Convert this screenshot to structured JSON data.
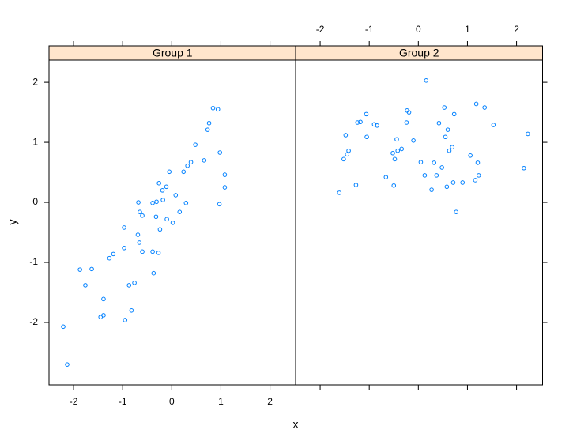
{
  "chart_data": {
    "type": "scatter",
    "xlabel": "x",
    "ylabel": "y",
    "xlim": [
      -2.5,
      2.53
    ],
    "ylim": [
      -3.04,
      2.37
    ],
    "xticks": [
      -2,
      -1,
      0,
      1,
      2
    ],
    "yticks": [
      -2,
      -1,
      0,
      1,
      2
    ],
    "color": "#0080ff",
    "strip_color": "#ffe5cc",
    "panels": [
      {
        "title": "Group 1",
        "x": [
          -2.21,
          -2.13,
          -1.87,
          -1.76,
          -1.63,
          -1.45,
          -1.39,
          -1.39,
          -1.27,
          -1.19,
          -0.97,
          -0.97,
          -0.95,
          -0.87,
          -0.82,
          -0.76,
          -0.69,
          -0.68,
          -0.66,
          -0.65,
          -0.6,
          -0.6,
          -0.39,
          -0.39,
          -0.37,
          -0.32,
          -0.31,
          -0.27,
          -0.26,
          -0.24,
          -0.19,
          -0.18,
          -0.11,
          -0.1,
          -0.05,
          0.02,
          0.08,
          0.16,
          0.24,
          0.29,
          0.32,
          0.39,
          0.48,
          0.66,
          0.73,
          0.76,
          0.84,
          0.94,
          0.97,
          0.98,
          1.08,
          1.08
        ],
        "y": [
          -2.07,
          -2.7,
          -1.12,
          -1.38,
          -1.11,
          -1.91,
          -1.88,
          -1.61,
          -0.93,
          -0.86,
          -0.42,
          -0.76,
          -1.96,
          -1.38,
          -1.8,
          -1.34,
          -0.54,
          0.0,
          -0.67,
          -0.16,
          -0.22,
          -0.82,
          -0.01,
          -0.82,
          -1.18,
          -0.24,
          0.01,
          -0.84,
          0.32,
          -0.45,
          0.2,
          0.04,
          0.26,
          -0.28,
          0.51,
          -0.34,
          0.12,
          -0.16,
          0.51,
          -0.01,
          0.61,
          0.67,
          0.96,
          0.7,
          1.21,
          1.32,
          1.57,
          1.55,
          -0.03,
          0.83,
          0.46,
          0.25
        ]
      },
      {
        "title": "Group 2",
        "x": [
          -1.61,
          -1.52,
          -1.48,
          -1.45,
          -1.42,
          -1.27,
          -1.24,
          -1.18,
          -1.06,
          -1.05,
          -0.9,
          -0.84,
          -0.66,
          -0.52,
          -0.5,
          -0.48,
          -0.44,
          -0.42,
          -0.34,
          -0.24,
          -0.23,
          -0.19,
          -0.1,
          0.05,
          0.13,
          0.16,
          0.27,
          0.32,
          0.37,
          0.42,
          0.48,
          0.53,
          0.55,
          0.58,
          0.6,
          0.63,
          0.69,
          0.71,
          0.73,
          0.77,
          0.9,
          1.06,
          1.16,
          1.18,
          1.21,
          1.23,
          1.35,
          1.53,
          2.15,
          2.23
        ],
        "y": [
          0.16,
          0.72,
          1.12,
          0.8,
          0.86,
          0.29,
          1.33,
          1.34,
          1.47,
          1.09,
          1.3,
          1.28,
          0.42,
          0.82,
          0.28,
          0.72,
          1.05,
          0.86,
          0.89,
          1.33,
          1.53,
          1.5,
          1.03,
          0.67,
          0.45,
          2.03,
          0.21,
          0.66,
          0.45,
          1.32,
          0.58,
          1.58,
          1.09,
          0.26,
          1.21,
          0.86,
          0.92,
          0.33,
          1.47,
          -0.16,
          0.33,
          0.78,
          0.37,
          1.64,
          0.66,
          0.45,
          1.58,
          1.29,
          0.57,
          1.14
        ]
      }
    ]
  }
}
